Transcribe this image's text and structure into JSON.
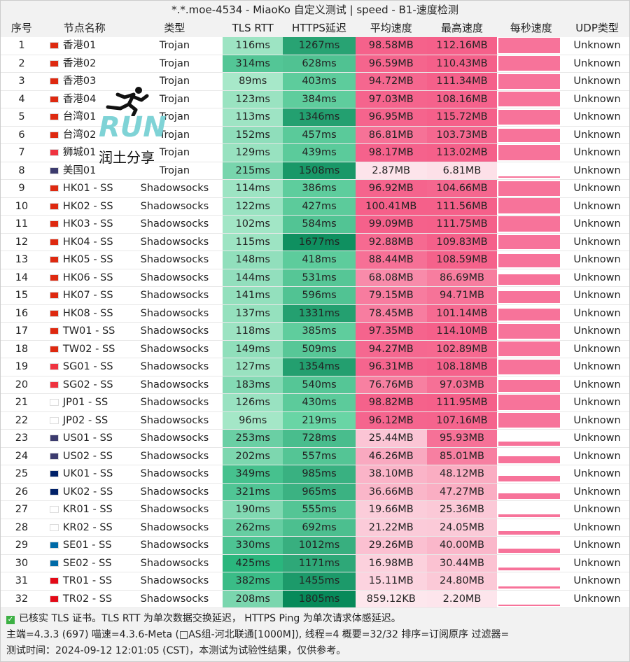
{
  "title": "*.*.moe-4534 - MiaoKo 自定义测试 | speed - B1-速度检测",
  "headers": [
    "序号",
    "节点名称",
    "类型",
    "TLS RTT",
    "HTTPS延迟",
    "平均速度",
    "最高速度",
    "每秒速度",
    "UDP类型"
  ],
  "colors": {
    "speed": "#f5608a",
    "tls": "#28b57c",
    "https": "#078a5a",
    "header_bg": "#f2f2f2"
  },
  "rows": [
    [
      "1",
      "hk",
      "香港01",
      "Trojan",
      "116ms",
      "1267ms",
      "98.58MB",
      "112.16MB",
      "Unknown"
    ],
    [
      "2",
      "hk",
      "香港02",
      "Trojan",
      "314ms",
      "628ms",
      "96.59MB",
      "110.43MB",
      "Unknown"
    ],
    [
      "3",
      "hk",
      "香港03",
      "Trojan",
      "89ms",
      "403ms",
      "94.72MB",
      "111.34MB",
      "Unknown"
    ],
    [
      "4",
      "hk",
      "香港04",
      "Trojan",
      "123ms",
      "384ms",
      "97.03MB",
      "108.16MB",
      "Unknown"
    ],
    [
      "5",
      "cn",
      "台湾01",
      "Trojan",
      "113ms",
      "1346ms",
      "96.95MB",
      "115.72MB",
      "Unknown"
    ],
    [
      "6",
      "cn",
      "台湾02",
      "Trojan",
      "152ms",
      "457ms",
      "86.81MB",
      "103.73MB",
      "Unknown"
    ],
    [
      "7",
      "sg",
      "狮城01",
      "Trojan",
      "129ms",
      "439ms",
      "98.17MB",
      "113.02MB",
      "Unknown"
    ],
    [
      "8",
      "us",
      "美国01",
      "Trojan",
      "215ms",
      "1508ms",
      "2.87MB",
      "6.81MB",
      "Unknown"
    ],
    [
      "9",
      "hk",
      "HK01 - SS",
      "Shadowsocks",
      "114ms",
      "386ms",
      "96.92MB",
      "104.66MB",
      "Unknown"
    ],
    [
      "10",
      "hk",
      "HK02 - SS",
      "Shadowsocks",
      "122ms",
      "427ms",
      "100.41MB",
      "111.56MB",
      "Unknown"
    ],
    [
      "11",
      "hk",
      "HK03 - SS",
      "Shadowsocks",
      "102ms",
      "584ms",
      "99.09MB",
      "111.75MB",
      "Unknown"
    ],
    [
      "12",
      "hk",
      "HK04 - SS",
      "Shadowsocks",
      "115ms",
      "1677ms",
      "92.88MB",
      "109.83MB",
      "Unknown"
    ],
    [
      "13",
      "hk",
      "HK05 - SS",
      "Shadowsocks",
      "148ms",
      "418ms",
      "88.44MB",
      "108.59MB",
      "Unknown"
    ],
    [
      "14",
      "hk",
      "HK06 - SS",
      "Shadowsocks",
      "144ms",
      "531ms",
      "68.08MB",
      "86.69MB",
      "Unknown"
    ],
    [
      "15",
      "hk",
      "HK07 - SS",
      "Shadowsocks",
      "141ms",
      "596ms",
      "79.15MB",
      "94.71MB",
      "Unknown"
    ],
    [
      "16",
      "hk",
      "HK08 - SS",
      "Shadowsocks",
      "137ms",
      "1331ms",
      "78.45MB",
      "101.14MB",
      "Unknown"
    ],
    [
      "17",
      "cn",
      "TW01 - SS",
      "Shadowsocks",
      "118ms",
      "385ms",
      "97.35MB",
      "114.10MB",
      "Unknown"
    ],
    [
      "18",
      "cn",
      "TW02 - SS",
      "Shadowsocks",
      "149ms",
      "509ms",
      "94.27MB",
      "102.89MB",
      "Unknown"
    ],
    [
      "19",
      "sg",
      "SG01 - SS",
      "Shadowsocks",
      "127ms",
      "1354ms",
      "96.31MB",
      "108.18MB",
      "Unknown"
    ],
    [
      "20",
      "sg",
      "SG02 - SS",
      "Shadowsocks",
      "183ms",
      "540ms",
      "76.76MB",
      "97.03MB",
      "Unknown"
    ],
    [
      "21",
      "jp",
      "JP01 - SS",
      "Shadowsocks",
      "126ms",
      "430ms",
      "98.82MB",
      "111.95MB",
      "Unknown"
    ],
    [
      "22",
      "jp",
      "JP02 - SS",
      "Shadowsocks",
      "96ms",
      "219ms",
      "96.12MB",
      "107.16MB",
      "Unknown"
    ],
    [
      "23",
      "us",
      "US01 - SS",
      "Shadowsocks",
      "253ms",
      "728ms",
      "25.44MB",
      "95.93MB",
      "Unknown"
    ],
    [
      "24",
      "us",
      "US02 - SS",
      "Shadowsocks",
      "202ms",
      "557ms",
      "46.26MB",
      "85.01MB",
      "Unknown"
    ],
    [
      "25",
      "gb",
      "UK01 - SS",
      "Shadowsocks",
      "349ms",
      "985ms",
      "38.10MB",
      "48.12MB",
      "Unknown"
    ],
    [
      "26",
      "gb",
      "UK02 - SS",
      "Shadowsocks",
      "321ms",
      "965ms",
      "36.66MB",
      "47.27MB",
      "Unknown"
    ],
    [
      "27",
      "kr",
      "KR01 - SS",
      "Shadowsocks",
      "190ms",
      "555ms",
      "19.66MB",
      "25.36MB",
      "Unknown"
    ],
    [
      "28",
      "kr",
      "KR02 - SS",
      "Shadowsocks",
      "262ms",
      "692ms",
      "21.22MB",
      "24.05MB",
      "Unknown"
    ],
    [
      "29",
      "se",
      "SE01 - SS",
      "Shadowsocks",
      "330ms",
      "1012ms",
      "29.26MB",
      "40.00MB",
      "Unknown"
    ],
    [
      "30",
      "se",
      "SE02 - SS",
      "Shadowsocks",
      "425ms",
      "1171ms",
      "16.98MB",
      "30.44MB",
      "Unknown"
    ],
    [
      "31",
      "tr",
      "TR01 - SS",
      "Shadowsocks",
      "382ms",
      "1455ms",
      "15.11MB",
      "24.80MB",
      "Unknown"
    ],
    [
      "32",
      "tr",
      "TR02 - SS",
      "Shadowsocks",
      "208ms",
      "1805ms",
      "859.12KB",
      "2.20MB",
      "Unknown"
    ]
  ],
  "footer": {
    "line1": "已核实 TLS 证书。TLS RTT 为单次数据交换延迟， HTTPS Ping 为单次请求体感延迟。",
    "line2": "主端=4.3.3 (697) 喵速=4.3.6-Meta (□AS组-河北联通[1000M]), 线程=4 概要=32/32 排序=订阅原序 过滤器=",
    "line3": "测试时间：2024-09-12 12:01:05 (CST)，本测试为试验性结果，仅供参考。"
  },
  "logo": {
    "text": "RUN",
    "subtitle": "润土分享",
    "icon": "running-man-icon"
  }
}
